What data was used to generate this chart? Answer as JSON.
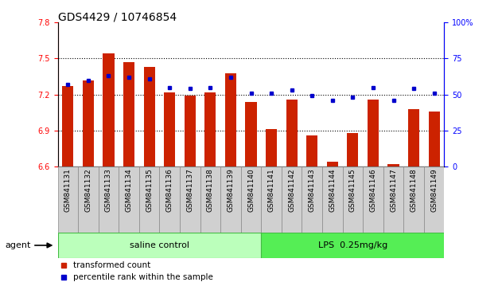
{
  "title": "GDS4429 / 10746854",
  "samples": [
    "GSM841131",
    "GSM841132",
    "GSM841133",
    "GSM841134",
    "GSM841135",
    "GSM841136",
    "GSM841137",
    "GSM841138",
    "GSM841139",
    "GSM841140",
    "GSM841141",
    "GSM841142",
    "GSM841143",
    "GSM841144",
    "GSM841145",
    "GSM841146",
    "GSM841147",
    "GSM841148",
    "GSM841149"
  ],
  "transformed_count": [
    7.27,
    7.32,
    7.54,
    7.47,
    7.43,
    7.22,
    7.19,
    7.22,
    7.38,
    7.14,
    6.91,
    7.16,
    6.86,
    6.64,
    6.88,
    7.16,
    6.62,
    7.08,
    7.06
  ],
  "percentile_rank": [
    57,
    60,
    63,
    62,
    61,
    55,
    54,
    55,
    62,
    51,
    51,
    53,
    49,
    46,
    48,
    55,
    46,
    54,
    51
  ],
  "ylim_left": [
    6.6,
    7.8
  ],
  "ylim_right": [
    0,
    100
  ],
  "yticks_left": [
    6.6,
    6.9,
    7.2,
    7.5,
    7.8
  ],
  "yticks_right": [
    0,
    25,
    50,
    75,
    100
  ],
  "bar_color": "#cc2200",
  "dot_color": "#0000cc",
  "group1_label": "saline control",
  "group2_label": "LPS  0.25mg/kg",
  "group1_count": 10,
  "group1_color": "#bbffbb",
  "group2_color": "#55ee55",
  "agent_label": "agent",
  "legend_bar_label": "transformed count",
  "legend_dot_label": "percentile rank within the sample",
  "background_color": "#ffffff",
  "plot_bg": "#ffffff",
  "label_box_color": "#d0d0d0",
  "title_fontsize": 10,
  "tick_fontsize": 7,
  "label_fontsize": 8
}
